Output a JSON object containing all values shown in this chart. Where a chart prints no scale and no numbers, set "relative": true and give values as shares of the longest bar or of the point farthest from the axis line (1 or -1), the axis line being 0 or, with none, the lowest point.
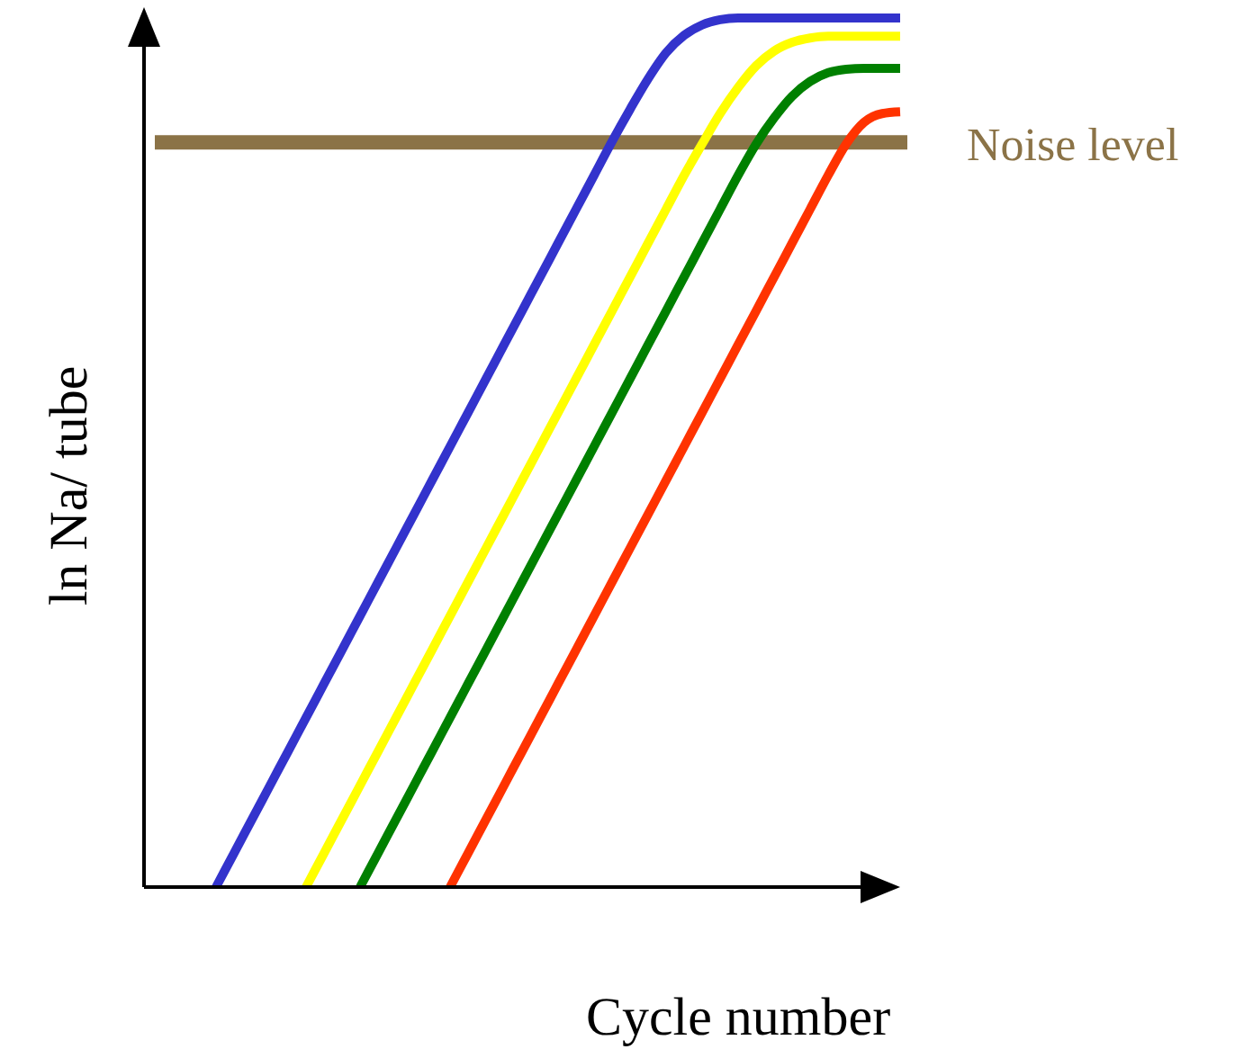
{
  "chart_data": {
    "type": "line",
    "relative": true,
    "xlabel": "Cycle number",
    "ylabel": "ln Na/ tube",
    "categories": [
      null,
      null,
      null,
      null,
      null,
      null,
      null,
      null,
      null,
      null,
      null,
      null,
      null,
      null,
      null,
      null,
      null,
      null,
      null,
      null,
      null,
      null,
      null,
      null,
      null,
      null,
      null,
      null,
      null,
      null,
      null,
      null,
      null,
      null,
      null,
      null,
      null,
      null,
      null,
      null,
      null,
      null,
      null
    ],
    "series": [
      {
        "color": "#3333cc",
        "values": [
          null,
          null,
          null,
          null,
          0,
          0.039,
          0.078,
          0.117,
          0.156,
          0.195,
          0.234,
          0.273,
          0.312,
          0.351,
          0.39,
          0.429,
          0.468,
          0.507,
          0.546,
          0.585,
          0.624,
          0.663,
          0.702,
          0.741,
          0.78,
          0.819,
          0.858,
          0.895,
          0.93,
          0.96,
          0.98,
          0.992,
          0.998,
          1,
          1,
          1,
          1,
          1,
          1,
          1,
          1,
          1,
          1
        ]
      },
      {
        "color": "#ffff00",
        "values": [
          null,
          null,
          null,
          null,
          null,
          null,
          null,
          null,
          null,
          0,
          0.039,
          0.078,
          0.117,
          0.156,
          0.195,
          0.234,
          0.273,
          0.312,
          0.351,
          0.39,
          0.429,
          0.468,
          0.507,
          0.546,
          0.585,
          0.624,
          0.663,
          0.702,
          0.741,
          0.78,
          0.819,
          0.855,
          0.89,
          0.92,
          0.945,
          0.962,
          0.972,
          0.977,
          0.979,
          0.979,
          0.979,
          0.979,
          0.979
        ]
      },
      {
        "color": "#008000",
        "values": [
          null,
          null,
          null,
          null,
          null,
          null,
          null,
          null,
          null,
          null,
          null,
          null,
          0,
          0.039,
          0.078,
          0.117,
          0.156,
          0.195,
          0.234,
          0.273,
          0.312,
          0.351,
          0.39,
          0.429,
          0.468,
          0.507,
          0.546,
          0.585,
          0.624,
          0.663,
          0.702,
          0.741,
          0.78,
          0.819,
          0.855,
          0.885,
          0.91,
          0.927,
          0.937,
          0.941,
          0.942,
          0.942,
          0.942
        ]
      },
      {
        "color": "#ff3300",
        "values": [
          null,
          null,
          null,
          null,
          null,
          null,
          null,
          null,
          null,
          null,
          null,
          null,
          null,
          null,
          null,
          null,
          null,
          0,
          0.039,
          0.078,
          0.117,
          0.156,
          0.195,
          0.234,
          0.273,
          0.312,
          0.351,
          0.39,
          0.429,
          0.468,
          0.507,
          0.546,
          0.585,
          0.624,
          0.663,
          0.702,
          0.741,
          0.78,
          0.819,
          0.855,
          0.88,
          0.89,
          0.892
        ]
      }
    ],
    "ref_lines": [
      {
        "axis": "y",
        "value": 0.857,
        "label": "Noise level",
        "color": "#8b7347"
      }
    ]
  }
}
